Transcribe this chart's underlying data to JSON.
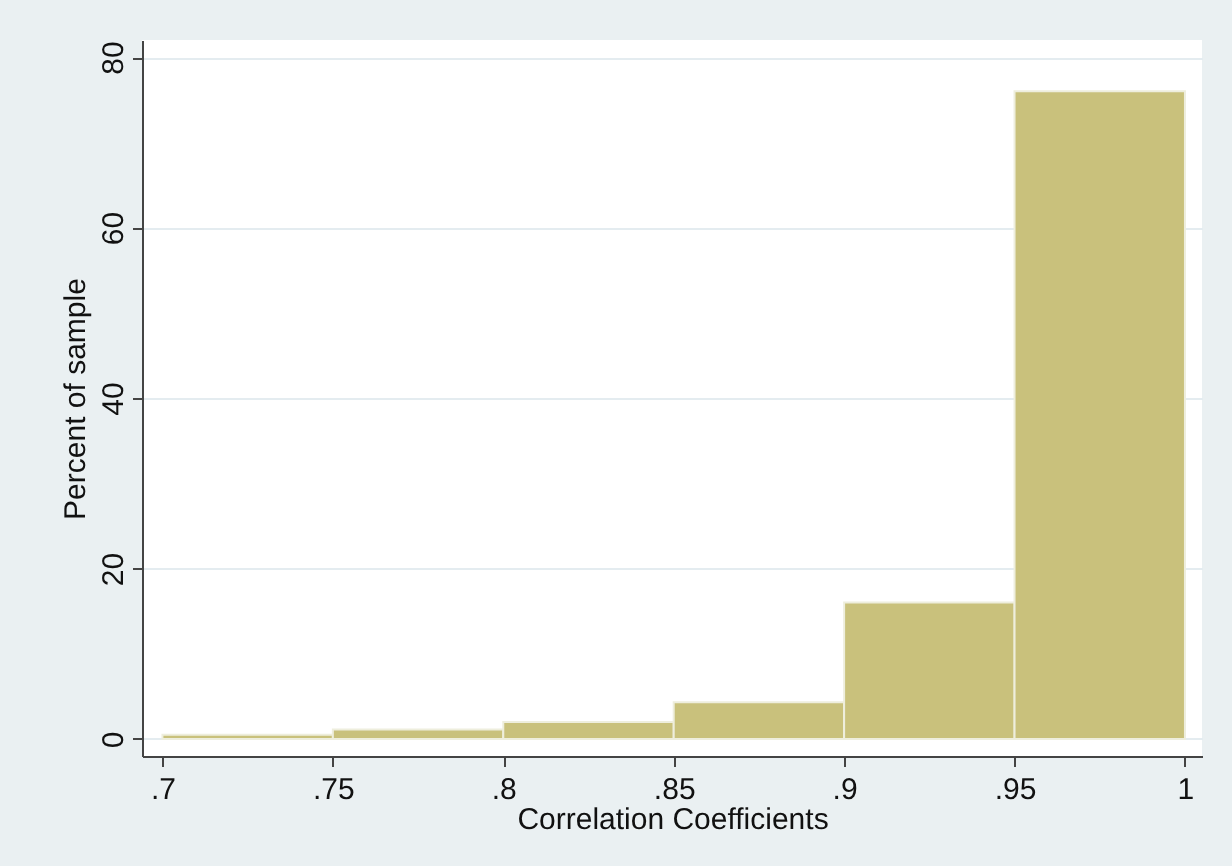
{
  "chart_data": {
    "type": "histogram",
    "xlabel": "Correlation Coefficients",
    "ylabel": "Percent of sample",
    "bins": [
      0.7,
      0.75,
      0.8,
      0.85,
      0.9,
      0.95,
      1
    ],
    "values": [
      0.5,
      1.1,
      2.0,
      4.3,
      16.0,
      76.0
    ],
    "color": "#c9c17c",
    "xlim": [
      0.694,
      1.005
    ],
    "xticks": [
      {
        "value": 0.7,
        "label": ".7"
      },
      {
        "value": 0.75,
        "label": ".75"
      },
      {
        "value": 0.8,
        "label": ".8"
      },
      {
        "value": 0.85,
        "label": ".85"
      },
      {
        "value": 0.9,
        "label": ".9"
      },
      {
        "value": 0.95,
        "label": ".95"
      },
      1
    ],
    "ylim": [
      -2,
      82
    ],
    "yticks": [
      0,
      20,
      40,
      60,
      80
    ],
    "grid": "y"
  }
}
